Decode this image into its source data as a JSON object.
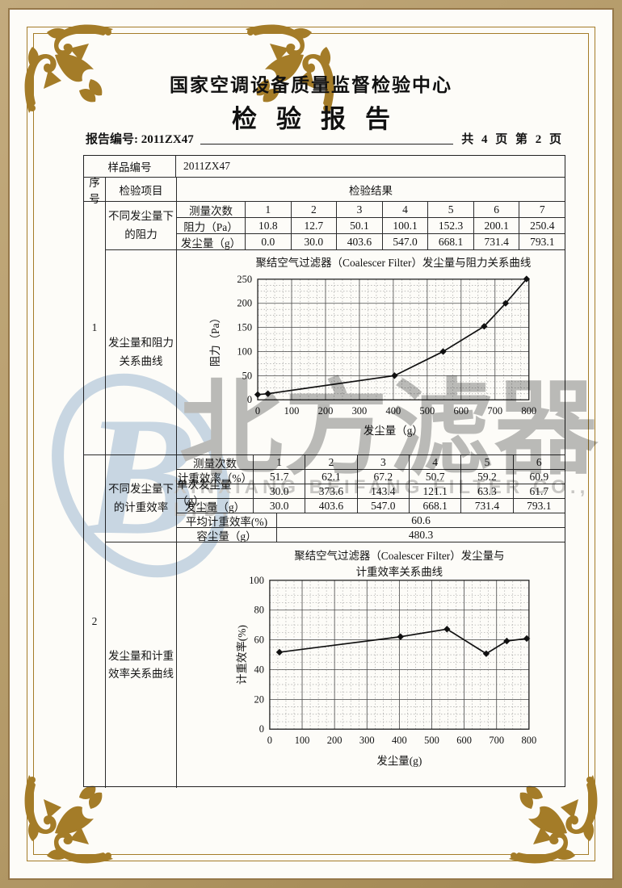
{
  "header": {
    "center_name": "国家空调设备质量监督检验中心",
    "report_title": "检验报告",
    "report_no_label": "报告编号:",
    "report_no_value": "2011ZX47",
    "page_info": "共 4 页 第 2 页"
  },
  "sample": {
    "label": "样品编号",
    "value": "2011ZX47"
  },
  "columns": {
    "seq": "序号",
    "item": "检验项目",
    "result": "检验结果"
  },
  "sections": [
    {
      "seq": "1",
      "item_a": "不同发尘量下的阻力",
      "item_b": "发尘量和阻力关系曲线"
    },
    {
      "seq": "2",
      "item_a": "不同发尘量下的计重效率",
      "item_b": "发尘量和计重效率关系曲线"
    }
  ],
  "section1_table": {
    "rows": [
      {
        "label": "测量次数",
        "values": [
          "1",
          "2",
          "3",
          "4",
          "5",
          "6",
          "7"
        ]
      },
      {
        "label": "阻力（Pa）",
        "values": [
          "10.8",
          "12.7",
          "50.1",
          "100.1",
          "152.3",
          "200.1",
          "250.4"
        ]
      },
      {
        "label": "发尘量（g）",
        "values": [
          "0.0",
          "30.0",
          "403.6",
          "547.0",
          "668.1",
          "731.4",
          "793.1"
        ]
      }
    ]
  },
  "section2_table": {
    "rows": [
      {
        "label": "测量次数",
        "values": [
          "1",
          "2",
          "3",
          "4",
          "5",
          "6"
        ]
      },
      {
        "label": "计重效率（%）",
        "values": [
          "51.7",
          "62.1",
          "67.2",
          "50.7",
          "59.2",
          "60.9"
        ]
      },
      {
        "label": "单次发尘量（g）",
        "values": [
          "30.0",
          "373.6",
          "143.4",
          "121.1",
          "63.3",
          "61.7"
        ]
      },
      {
        "label": "发尘量（g）",
        "values": [
          "30.0",
          "403.6",
          "547.0",
          "668.1",
          "731.4",
          "793.1"
        ]
      }
    ],
    "summary": [
      {
        "label": "平均计重效率(%)",
        "value": "60.6"
      },
      {
        "label": "容尘量（g）",
        "value": "480.3"
      }
    ]
  },
  "chart_data": [
    {
      "type": "line",
      "title_lines": [
        "聚结空气过滤器（Coalescer Filter）发尘量与阻力关系曲线"
      ],
      "xlabel": "发尘量（g）",
      "ylabel": "阻力（Pa）",
      "x": [
        0,
        30,
        403.6,
        547,
        668.1,
        731.4,
        793.1
      ],
      "y": [
        10.8,
        12.7,
        50.1,
        100.1,
        152.3,
        200.1,
        250.4
      ],
      "xlim": [
        0,
        800
      ],
      "ylim": [
        0,
        250
      ],
      "xticks": [
        0,
        100,
        200,
        300,
        400,
        500,
        600,
        700,
        800
      ],
      "yticks": [
        0,
        50,
        100,
        150,
        200,
        250
      ],
      "grid": true,
      "marker": "diamond",
      "legend": "none"
    },
    {
      "type": "line",
      "title_lines": [
        "聚结空气过滤器（Coalescer Filter）发尘量与",
        "计重效率关系曲线"
      ],
      "xlabel": "发尘量(g)",
      "ylabel": "计重效率(%)",
      "x": [
        30,
        403.6,
        547,
        668.1,
        731.4,
        793.1
      ],
      "y": [
        51.7,
        62.1,
        67.2,
        50.7,
        59.2,
        60.9
      ],
      "xlim": [
        0,
        800
      ],
      "ylim": [
        0,
        100
      ],
      "xticks": [
        0,
        100,
        200,
        300,
        400,
        500,
        600,
        700,
        800
      ],
      "yticks": [
        0,
        20,
        40,
        60,
        80,
        100
      ],
      "grid": true,
      "marker": "diamond",
      "legend": "none"
    }
  ],
  "watermark": {
    "logo_letter": "B",
    "text_cn": "北方滤器",
    "text_en": "XINXIANG BEIFANG FILTER CO., LTD.",
    "logo_color": "#bdd0e4",
    "text_color": "#ababab"
  },
  "colors": {
    "frame_gold": "#a47c28",
    "outer_band": "#b29866",
    "paper": "#fdfcf8",
    "ink": "#141414"
  }
}
